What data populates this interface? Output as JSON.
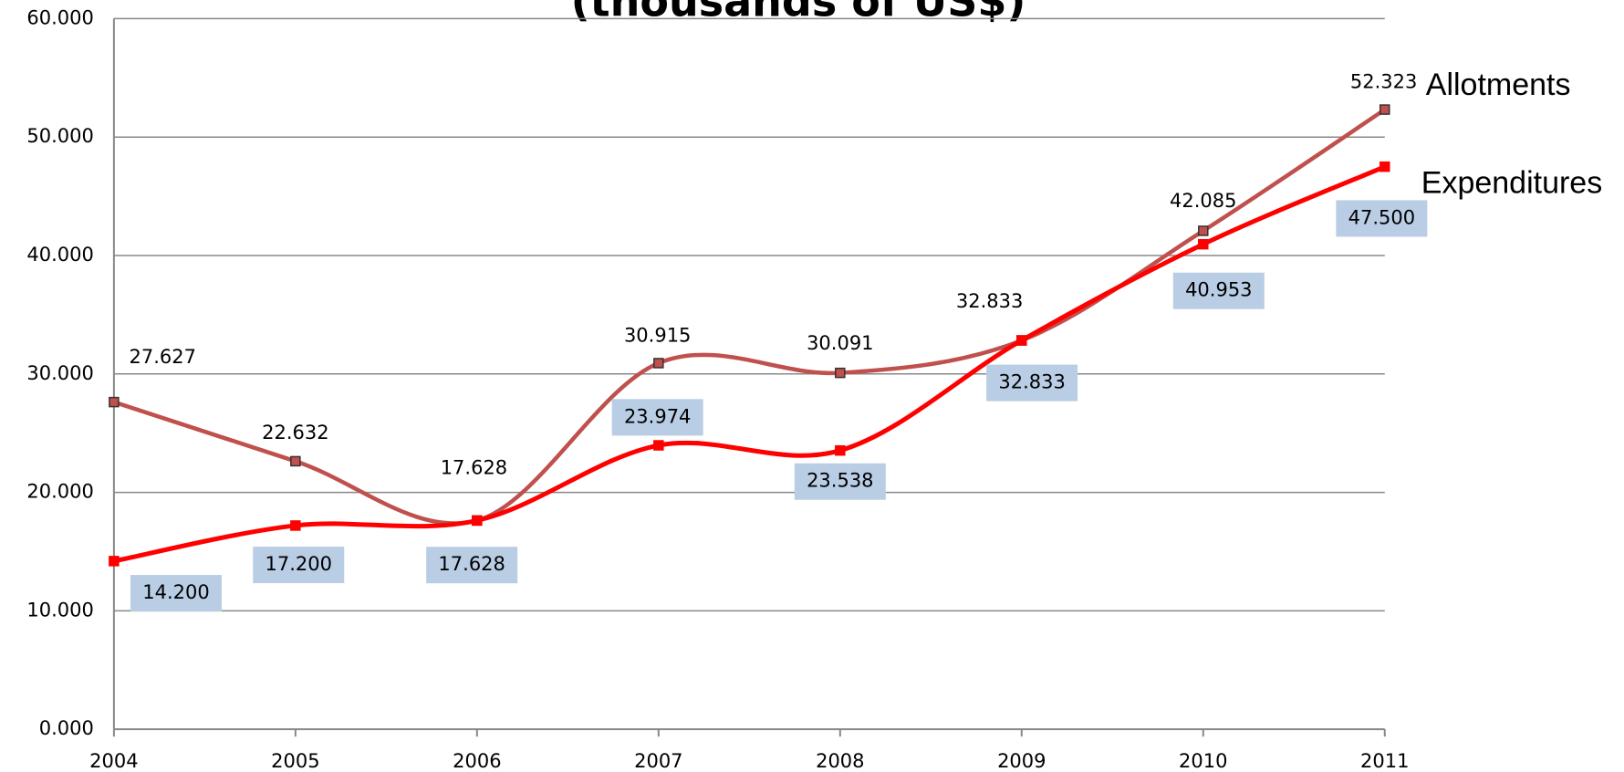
{
  "chart_data": {
    "type": "line",
    "title": "(thousands of US$)",
    "categories": [
      "2004",
      "2005",
      "2006",
      "2007",
      "2008",
      "2009",
      "2010",
      "2011"
    ],
    "series": [
      {
        "name": "Allotments",
        "color": "#c0504d",
        "label_color": "#333399",
        "values": [
          27627,
          22632,
          17628,
          30915,
          30091,
          32833,
          42085,
          52323
        ],
        "value_labels": [
          "27.627",
          "22.632",
          "17.628",
          "30.915",
          "30.091",
          "32.833",
          "42.085",
          "52.323"
        ]
      },
      {
        "name": "Expenditures",
        "color": "#ff0000",
        "label_color": "#ff0000",
        "values": [
          14200,
          17200,
          17628,
          23974,
          23538,
          32833,
          40953,
          47500
        ],
        "value_labels": [
          "14.200",
          "17.200",
          "17.628",
          "23.974",
          "23.538",
          "32.833",
          "40.953",
          "47.500"
        ]
      }
    ],
    "ylim": [
      0,
      60000
    ],
    "yticks": [
      {
        "value": 0,
        "label": "0.000"
      },
      {
        "value": 10000,
        "label": "10.000"
      },
      {
        "value": 20000,
        "label": "20.000"
      },
      {
        "value": 30000,
        "label": "30.000"
      },
      {
        "value": 40000,
        "label": "40.000"
      },
      {
        "value": 50000,
        "label": "50.000"
      },
      {
        "value": 60000,
        "label": "60.000"
      }
    ],
    "grid": true
  }
}
